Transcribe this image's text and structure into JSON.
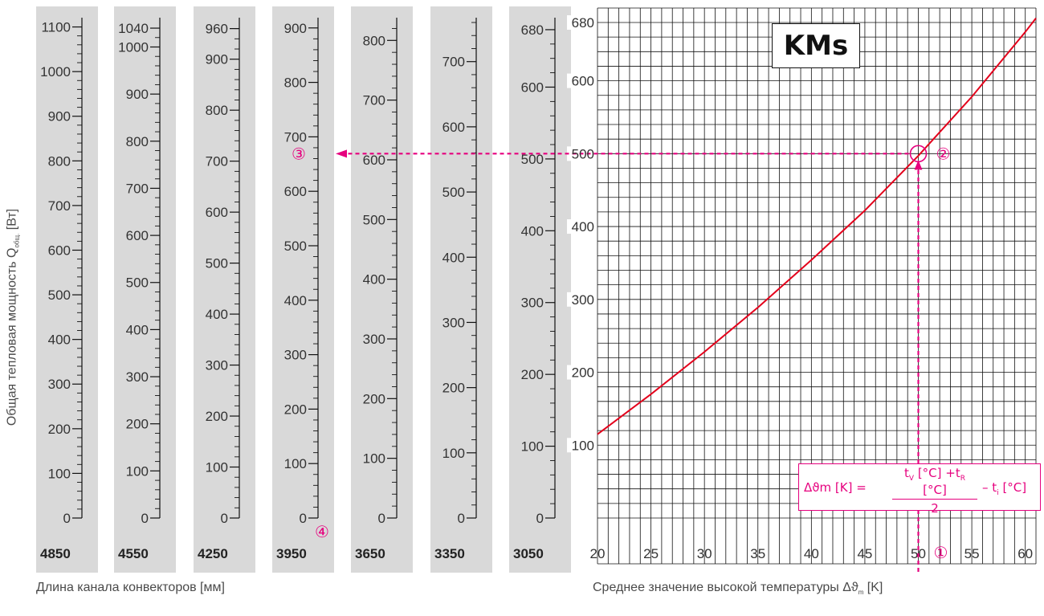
{
  "colors": {
    "strip": "#d9d9d9",
    "grid": "#111111",
    "curve": "#e3001b",
    "accent": "#e6007e",
    "text": "#444444"
  },
  "chart_data": {
    "type": "line",
    "title": "KMs",
    "ylabel": {
      "prefix": "Общая тепловая мощность Q",
      "sub": "общ.",
      "suffix": " [Вт]"
    },
    "xlabel_left": "Длина канала конвекторов [мм]",
    "xlabel_right": {
      "prefix": "Среднее значение высокой температуры Δϑ",
      "sub": "m",
      "suffix": " [K]"
    },
    "xlim": [
      20,
      61
    ],
    "x_ticks": [
      20,
      25,
      30,
      35,
      40,
      45,
      50,
      55,
      60
    ],
    "ylim": [
      0,
      690
    ],
    "y_ticks": [
      100,
      200,
      300,
      400,
      500,
      600,
      680
    ],
    "series": [
      {
        "x": [
          20,
          25,
          30,
          35,
          40,
          45,
          50,
          55,
          60,
          61
        ],
        "values": [
          115,
          170,
          228,
          289,
          354,
          422,
          497,
          578,
          667,
          686
        ]
      }
    ],
    "strips": [
      {
        "label": "4850",
        "max": 1110,
        "labels": [
          0,
          100,
          200,
          300,
          400,
          500,
          600,
          700,
          800,
          900,
          1000,
          1100
        ]
      },
      {
        "label": "4550",
        "max": 1052,
        "labels": [
          0,
          100,
          200,
          300,
          400,
          500,
          600,
          700,
          800,
          900,
          1000,
          1040
        ]
      },
      {
        "label": "4250",
        "max": 972,
        "labels": [
          0,
          100,
          200,
          300,
          400,
          500,
          600,
          700,
          800,
          900,
          960
        ]
      },
      {
        "label": "3950",
        "max": 910,
        "labels": [
          0,
          100,
          200,
          300,
          400,
          500,
          600,
          700,
          800,
          900
        ]
      },
      {
        "label": "3650",
        "max": 830,
        "labels": [
          0,
          100,
          200,
          300,
          400,
          500,
          600,
          700,
          800
        ]
      },
      {
        "label": "3350",
        "max": 760,
        "labels": [
          0,
          100,
          200,
          300,
          400,
          500,
          600,
          700
        ]
      },
      {
        "label": "3050",
        "max": 690,
        "labels": [
          0,
          100,
          200,
          300,
          400,
          500,
          600,
          680
        ]
      }
    ],
    "annotations": {
      "marker_1": "①",
      "marker_2": "②",
      "marker_3": "③",
      "marker_4": "④",
      "example_x": 50,
      "example_y": 500
    },
    "formula": {
      "left": "Δϑm [K] =",
      "numerator_a": "t",
      "numerator_a_sub": "V",
      "numerator_b": " [°C] +t",
      "numerator_b_sub": "R",
      "numerator_c": " [°C]",
      "denominator": "2",
      "right_a": "– t",
      "right_a_sub": "i",
      "right_b": " [°C]"
    }
  }
}
